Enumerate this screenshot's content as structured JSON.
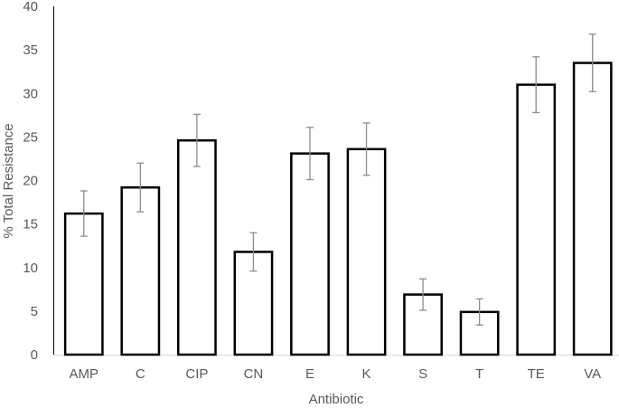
{
  "chart_data": {
    "type": "bar",
    "title": "",
    "xlabel": "Antibiotic",
    "ylabel": "% Total Resistance",
    "categories": [
      "AMP",
      "C",
      "CIP",
      "CN",
      "E",
      "K",
      "S",
      "T",
      "TE",
      "VA"
    ],
    "values": [
      16.2,
      19.2,
      24.6,
      11.8,
      23.1,
      23.6,
      6.9,
      4.9,
      31.0,
      33.5
    ],
    "error": [
      2.6,
      2.8,
      3.0,
      2.2,
      3.0,
      3.0,
      1.8,
      1.5,
      3.2,
      3.3
    ],
    "ylim": [
      0,
      40
    ],
    "yticks": [
      0,
      5,
      10,
      15,
      20,
      25,
      30,
      35,
      40
    ],
    "grid": false,
    "legend": null,
    "colors": {
      "bar_fill": "#ffffff",
      "bar_stroke": "#000000",
      "error_bar": "#8c8c8c",
      "axis": "#000000",
      "text": "#595959"
    }
  }
}
